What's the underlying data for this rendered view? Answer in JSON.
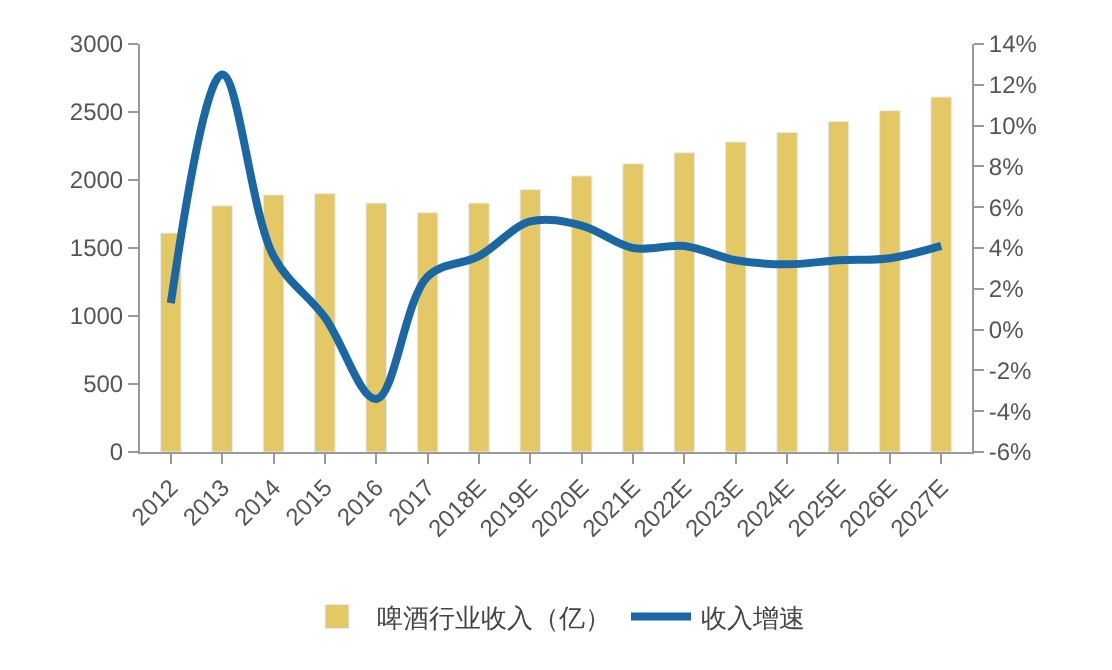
{
  "chart_data": {
    "type": "bar",
    "categories": [
      "2012",
      "2013",
      "2014",
      "2015",
      "2016",
      "2017",
      "2018E",
      "2019E",
      "2020E",
      "2021E",
      "2022E",
      "2023E",
      "2024E",
      "2025E",
      "2026E",
      "2027E"
    ],
    "series": [
      {
        "name": "啤酒行业收入（亿）",
        "color": "#e5c866",
        "values": [
          1610,
          1810,
          1890,
          1900,
          1830,
          1760,
          1830,
          1930,
          2030,
          2120,
          2200,
          2280,
          2350,
          2430,
          2510,
          2610
        ]
      },
      {
        "name": "收入增速",
        "type": "line",
        "axis": "y2",
        "color": "#1a67a3",
        "values": [
          1.3,
          12.5,
          3.6,
          0.6,
          -3.4,
          2.6,
          3.6,
          5.3,
          5.1,
          4.0,
          4.1,
          3.4,
          3.2,
          3.4,
          3.5,
          4.1
        ]
      }
    ],
    "ylim": [
      0,
      3000
    ],
    "yticks": [
      0,
      500,
      1000,
      1500,
      2000,
      2500,
      3000
    ],
    "y2lim": [
      -6,
      14
    ],
    "y2ticks": [
      {
        "value": -6,
        "label": "-6%"
      },
      {
        "value": -4,
        "label": "-4%"
      },
      {
        "value": -2,
        "label": "-2%"
      },
      {
        "value": 0,
        "label": "0%"
      },
      {
        "value": 2,
        "label": "2%"
      },
      {
        "value": 4,
        "label": "4%"
      },
      {
        "value": 6,
        "label": "6%"
      },
      {
        "value": 8,
        "label": "8%"
      },
      {
        "value": 10,
        "label": "10%"
      },
      {
        "value": 12,
        "label": "12%"
      },
      {
        "value": 14,
        "label": "14%"
      }
    ],
    "legend": "bottom",
    "marker": "none",
    "line_style": "solid"
  }
}
